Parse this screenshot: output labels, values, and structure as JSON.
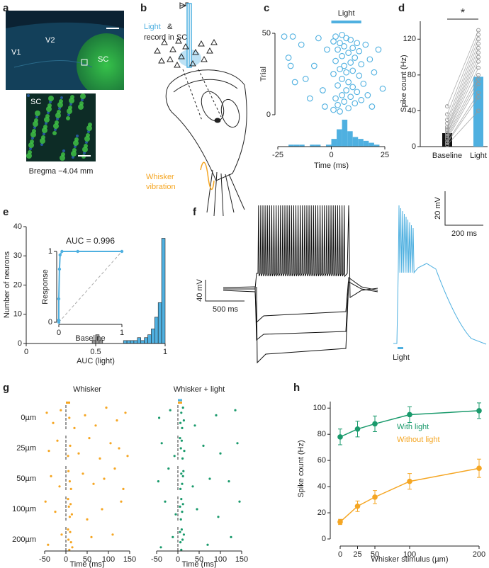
{
  "panel_a": {
    "label": "a",
    "regions": [
      "V1",
      "V2",
      "SC"
    ],
    "inset_label": "SC",
    "caption": "Bregma −4.04 mm"
  },
  "panel_b": {
    "label": "b",
    "light_text": "Light",
    "amp": "&",
    "record_text": "record in SC",
    "stim_line1": "Whisker",
    "stim_line2": "vibration"
  },
  "panel_f": {
    "label": "f",
    "scale_left": [
      "40 mV",
      "500 ms"
    ],
    "scale_right": [
      "20 mV",
      "200 ms"
    ],
    "light": "Light"
  },
  "chart_data": [
    {
      "type": "raster",
      "label": "c",
      "title": "Light",
      "light_window": [
        0,
        14
      ],
      "xlabel": "Time (ms)",
      "ylabel": "Trial",
      "xlim": [
        -25,
        25
      ],
      "xticks": [
        -25,
        0,
        25
      ],
      "ylim": [
        0,
        50
      ],
      "yticks": [
        0,
        50
      ],
      "color": "#4fb0e0",
      "x": [
        -22,
        -20,
        -19,
        -18,
        -17,
        -14,
        -12,
        -10,
        -8,
        -6,
        -4,
        -3,
        -2,
        1,
        1,
        1,
        2,
        2,
        2,
        3,
        3,
        3,
        4,
        4,
        4,
        5,
        5,
        5,
        5,
        6,
        6,
        6,
        7,
        7,
        7,
        8,
        8,
        8,
        9,
        9,
        9,
        10,
        10,
        10,
        11,
        11,
        12,
        12,
        13,
        13,
        14,
        14,
        15,
        16,
        17,
        18,
        19,
        20,
        22,
        24
      ],
      "y": [
        48,
        35,
        30,
        48,
        20,
        43,
        22,
        10,
        30,
        47,
        15,
        5,
        40,
        3,
        25,
        45,
        10,
        33,
        48,
        6,
        18,
        40,
        2,
        28,
        44,
        12,
        22,
        36,
        49,
        8,
        30,
        42,
        15,
        26,
        47,
        4,
        20,
        38,
        11,
        32,
        46,
        17,
        27,
        41,
        7,
        35,
        14,
        44,
        24,
        39,
        9,
        31,
        19,
        43,
        12,
        34,
        5,
        26,
        40,
        16
      ],
      "hist": {
        "bins": [
          -25,
          -22.5,
          -20,
          -17.5,
          -15,
          -12.5,
          -10,
          -7.5,
          -5,
          -2.5,
          0,
          2.5,
          5,
          7.5,
          10,
          12.5,
          15,
          17.5,
          20,
          22.5,
          25
        ],
        "counts": [
          0,
          0,
          1,
          1,
          1,
          0,
          1,
          1,
          0,
          1,
          4,
          9,
          14,
          8,
          5,
          4,
          3,
          2,
          1,
          0
        ]
      }
    },
    {
      "type": "bar",
      "label": "d",
      "categories": [
        "Baseline",
        "Light"
      ],
      "values": [
        15,
        78
      ],
      "colors": [
        "#111111",
        "#4fb0e0"
      ],
      "ylim": [
        0,
        140
      ],
      "yticks": [
        0,
        40,
        80,
        120
      ],
      "ylabel": "Spike count (Hz)",
      "significance": "*",
      "pairs": {
        "baseline": [
          2,
          4,
          5,
          8,
          10,
          12,
          14,
          15,
          18,
          20,
          22,
          26,
          30,
          36,
          45
        ],
        "light": [
          40,
          55,
          60,
          70,
          75,
          80,
          88,
          95,
          100,
          105,
          110,
          115,
          120,
          125,
          130
        ]
      }
    },
    {
      "type": "histogram",
      "label": "e",
      "xlabel": "AUC (light)",
      "ylabel": "Number of neurons",
      "xlim": [
        0,
        1
      ],
      "xticks": [
        0,
        0.5,
        1
      ],
      "ylim": [
        0,
        40
      ],
      "yticks": [
        0,
        10,
        20,
        30,
        40
      ],
      "bins": [
        0.45,
        0.475,
        0.5,
        0.525,
        0.55,
        0.575,
        0.6,
        0.625,
        0.65,
        0.675,
        0.7,
        0.725,
        0.75,
        0.775,
        0.8,
        0.825,
        0.85,
        0.875,
        0.9,
        0.925,
        0.95,
        0.975,
        1.0
      ],
      "counts": [
        0,
        1,
        3,
        1,
        0,
        0,
        0,
        0,
        0,
        0,
        1,
        1,
        1,
        1,
        2,
        1,
        2,
        3,
        5,
        9,
        14,
        36
      ],
      "colors": [
        "#999999",
        "#999999",
        "#999999",
        "#999999",
        "#999999",
        "#999999",
        "#4fb0e0",
        "#4fb0e0",
        "#4fb0e0",
        "#4fb0e0",
        "#4fb0e0",
        "#4fb0e0",
        "#4fb0e0",
        "#4fb0e0",
        "#4fb0e0",
        "#4fb0e0",
        "#4fb0e0",
        "#4fb0e0",
        "#4fb0e0",
        "#4fb0e0",
        "#4fb0e0",
        "#4fb0e0"
      ]
    },
    {
      "type": "line",
      "title": "AUC = 0.996",
      "xlabel": "Baseline",
      "ylabel": "Response",
      "xlim": [
        0,
        1
      ],
      "xticks": [
        0,
        1
      ],
      "ylim": [
        0,
        1
      ],
      "yticks": [
        0,
        1
      ],
      "color": "#4fb0e0",
      "x": [
        0,
        0,
        0,
        0.01,
        0.02,
        0.05,
        0.3,
        1
      ],
      "y": [
        0,
        0.03,
        0.33,
        0.75,
        0.95,
        1,
        1,
        1
      ]
    },
    {
      "type": "raster",
      "label": "g",
      "title": "Whisker",
      "xlabel": "Time (ms)",
      "xlim": [
        -50,
        150
      ],
      "xticks": [
        -50,
        0,
        50,
        100,
        150
      ],
      "ylim": [
        0,
        10
      ],
      "color": "#f5a623",
      "stim_window": [
        0,
        10
      ],
      "stim_color": "#f5a623",
      "series": [
        {
          "name": "0µm",
          "x": [
            -45,
            -30,
            -12,
            8,
            20,
            45,
            70,
            95,
            120,
            140
          ],
          "y": [
            3,
            7,
            2,
            5,
            9,
            4,
            8,
            1,
            6,
            3
          ]
        },
        {
          "name": "25µm",
          "x": [
            -40,
            -20,
            5,
            10,
            30,
            55,
            80,
            105,
            125,
            145
          ],
          "y": [
            6,
            2,
            8,
            4,
            7,
            1,
            9,
            3,
            5,
            8
          ]
        },
        {
          "name": "50µm",
          "x": [
            -35,
            -15,
            6,
            9,
            12,
            40,
            65,
            90,
            115,
            135
          ],
          "y": [
            4,
            8,
            2,
            6,
            9,
            3,
            7,
            5,
            1,
            9
          ]
        },
        {
          "name": "100µm",
          "x": [
            -48,
            -25,
            5,
            7,
            9,
            11,
            14,
            50,
            85,
            130
          ],
          "y": [
            2,
            6,
            1,
            4,
            8,
            3,
            7,
            9,
            5,
            2
          ]
        },
        {
          "name": "200µm",
          "x": [
            -42,
            -10,
            5,
            6,
            8,
            10,
            12,
            15,
            60,
            110
          ],
          "y": [
            7,
            3,
            1,
            5,
            9,
            2,
            6,
            8,
            4,
            3
          ]
        }
      ]
    },
    {
      "type": "raster",
      "title": "Whisker + light",
      "xlabel": "Time (ms)",
      "xlim": [
        -50,
        150
      ],
      "xticks": [
        -50,
        0,
        50,
        100,
        150
      ],
      "ylim": [
        0,
        10
      ],
      "color": "#1a9a6c",
      "stim_window": [
        0,
        10
      ],
      "stim_color": "#f5a623",
      "light_window": [
        0,
        10
      ],
      "light_color": "#4fb0e0",
      "series": [
        {
          "x": [
            -44,
            -18,
            6,
            8,
            10,
            12,
            14,
            40,
            90,
            135
          ],
          "y": [
            5,
            2,
            7,
            3,
            9,
            1,
            6,
            8,
            4,
            2
          ]
        },
        {
          "x": [
            -38,
            -8,
            5,
            7,
            9,
            11,
            15,
            60,
            100,
            140
          ],
          "y": [
            3,
            8,
            1,
            5,
            2,
            9,
            6,
            4,
            7,
            3
          ]
        },
        {
          "x": [
            -46,
            -22,
            6,
            8,
            10,
            12,
            13,
            35,
            75,
            120
          ],
          "y": [
            6,
            1,
            9,
            3,
            7,
            4,
            2,
            8,
            5,
            6
          ]
        },
        {
          "x": [
            -30,
            -5,
            5,
            7,
            8,
            10,
            12,
            45,
            95,
            145
          ],
          "y": [
            2,
            7,
            4,
            9,
            1,
            6,
            3,
            5,
            8,
            2
          ]
        },
        {
          "x": [
            -40,
            -12,
            5,
            6,
            8,
            9,
            11,
            14,
            70,
            125
          ],
          "y": [
            8,
            4,
            2,
            6,
            9,
            1,
            5,
            3,
            7,
            4
          ]
        }
      ]
    },
    {
      "type": "line",
      "label": "h",
      "xlabel": "Whisker stimulus (µm)",
      "ylabel": "Spike count (Hz)",
      "x": [
        0,
        25,
        50,
        100,
        200
      ],
      "xlim": [
        0,
        200
      ],
      "xticks": [
        0,
        25,
        50,
        100,
        200
      ],
      "ylim": [
        0,
        105
      ],
      "yticks": [
        0,
        20,
        40,
        60,
        80,
        100
      ],
      "series": [
        {
          "name": "With light",
          "color": "#1a9a6c",
          "values": [
            78,
            84,
            88,
            95,
            98
          ],
          "errors": [
            6,
            6,
            6,
            6,
            6
          ]
        },
        {
          "name": "Without light",
          "color": "#f5a623",
          "values": [
            13,
            25,
            32,
            44,
            54
          ],
          "errors": [
            2,
            4,
            5,
            6,
            7
          ]
        }
      ]
    }
  ]
}
